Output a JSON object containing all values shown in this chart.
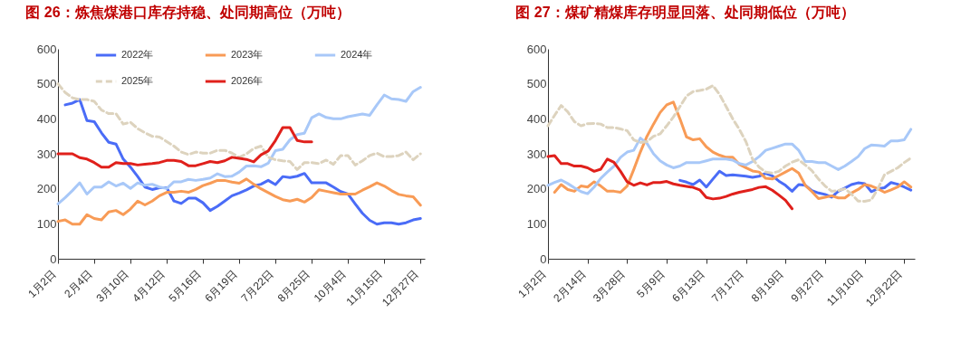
{
  "chart_data": [
    {
      "type": "line",
      "title": "图 26：炼焦煤港口库存持稳、处同期高位（万吨）",
      "categories": [
        "1月2日",
        null,
        null,
        null,
        null,
        "2月4日",
        null,
        null,
        null,
        null,
        "3月10日",
        null,
        null,
        null,
        null,
        "4月12日",
        null,
        null,
        null,
        null,
        "5月16日",
        null,
        null,
        null,
        null,
        "6月19日",
        null,
        null,
        null,
        null,
        "7月22日",
        null,
        null,
        null,
        null,
        "8月25日",
        null,
        null,
        null,
        null,
        "10月4日",
        null,
        null,
        null,
        null,
        "11月15日",
        null,
        null,
        null,
        null,
        "12月27日"
      ],
      "ylim": [
        0,
        600
      ],
      "yticks": [
        0,
        100,
        200,
        300,
        400,
        500,
        600
      ],
      "legend": "top",
      "grid": false,
      "series": [
        {
          "name": "2022年",
          "color": "#4a6cf7",
          "line_style": "solid",
          "values": [
            null,
            440,
            445,
            455,
            395,
            392,
            360,
            333,
            328,
            285,
            262,
            235,
            205,
            198,
            203,
            203,
            165,
            158,
            173,
            173,
            160,
            138,
            150,
            165,
            180,
            188,
            197,
            208,
            213,
            224,
            212,
            235,
            232,
            236,
            244,
            217,
            217,
            217,
            205,
            192,
            185,
            157,
            130,
            110,
            99,
            103,
            103,
            99,
            103,
            111,
            115
          ]
        },
        {
          "name": "2023年",
          "color": "#f89b56",
          "line_style": "solid",
          "values": [
            107,
            111,
            99,
            99,
            126,
            115,
            111,
            134,
            138,
            126,
            142,
            165,
            154,
            165,
            180,
            190,
            190,
            193,
            190,
            198,
            209,
            216,
            224,
            224,
            219,
            216,
            228,
            213,
            200,
            189,
            178,
            169,
            165,
            170,
            162,
            175,
            197,
            193,
            189,
            185,
            185,
            185,
            196,
            206,
            217,
            208,
            195,
            184,
            180,
            177,
            153
          ]
        },
        {
          "name": "2024年",
          "color": "#a8c8f8",
          "line_style": "solid",
          "values": [
            157,
            175,
            195,
            217,
            185,
            205,
            205,
            220,
            208,
            216,
            201,
            217,
            210,
            213,
            205,
            201,
            220,
            220,
            227,
            224,
            227,
            231,
            243,
            235,
            236,
            248,
            265,
            266,
            263,
            273,
            309,
            313,
            340,
            355,
            359,
            403,
            414,
            404,
            400,
            400,
            406,
            410,
            414,
            410,
            440,
            468,
            457,
            455,
            450,
            478,
            490
          ]
        },
        {
          "name": "2025年",
          "color": "#ddd3be",
          "line_style": "dashed",
          "values": [
            500,
            475,
            460,
            455,
            455,
            450,
            425,
            415,
            415,
            385,
            390,
            372,
            360,
            350,
            348,
            335,
            322,
            305,
            298,
            305,
            302,
            302,
            310,
            310,
            302,
            290,
            300,
            315,
            322,
            290,
            283,
            280,
            278,
            255,
            275,
            275,
            272,
            282,
            270,
            295,
            295,
            268,
            280,
            295,
            302,
            292,
            292,
            295,
            305,
            283,
            300
          ]
        },
        {
          "name": "2026年",
          "color": "#e0201b",
          "line_style": "solid",
          "values": [
            300,
            300,
            300,
            289,
            285,
            275,
            262,
            262,
            275,
            272,
            272,
            268,
            270,
            272,
            275,
            281,
            281,
            278,
            266,
            266,
            272,
            278,
            275,
            280,
            290,
            287,
            284,
            277,
            297,
            308,
            338,
            375,
            375,
            338,
            334,
            334,
            null,
            null,
            null,
            null,
            null,
            null,
            null,
            null,
            null,
            null,
            null,
            null,
            null,
            null,
            null
          ]
        }
      ]
    },
    {
      "type": "line",
      "title": "图 27：煤矿精煤库存明显回落、处同期低位（万吨）",
      "categories": [
        "1月2日",
        null,
        null,
        null,
        null,
        null,
        "2月14日",
        null,
        null,
        null,
        null,
        null,
        "3月28日",
        null,
        null,
        null,
        null,
        null,
        "5月9日",
        null,
        null,
        null,
        null,
        null,
        "6月13日",
        null,
        null,
        null,
        null,
        null,
        "7月17日",
        null,
        null,
        null,
        null,
        null,
        "8月19日",
        null,
        null,
        null,
        null,
        null,
        "9月27日",
        null,
        null,
        null,
        null,
        null,
        "11月10日",
        null,
        null,
        null,
        null,
        null,
        "12月22日",
        null
      ],
      "ylim": [
        0,
        600
      ],
      "yticks": [
        0,
        100,
        200,
        300,
        400,
        500,
        600
      ],
      "legend": "top",
      "grid": false,
      "series": [
        {
          "name": "2022年",
          "color": "#4a6cf7",
          "line_style": "solid",
          "values": [
            null,
            null,
            null,
            null,
            null,
            null,
            null,
            null,
            null,
            null,
            null,
            null,
            null,
            null,
            null,
            null,
            null,
            null,
            null,
            null,
            224,
            219,
            212,
            225,
            205,
            228,
            250,
            238,
            240,
            238,
            236,
            233,
            236,
            244,
            237,
            222,
            210,
            193,
            212,
            210,
            195,
            188,
            184,
            176,
            193,
            202,
            212,
            217,
            215,
            192,
            200,
            203,
            218,
            213,
            205,
            196
          ]
        },
        {
          "name": "2023年",
          "color": "#f89b56",
          "line_style": "solid",
          "values": [
            null,
            190,
            212,
            198,
            193,
            208,
            205,
            220,
            208,
            193,
            193,
            190,
            208,
            255,
            305,
            350,
            385,
            418,
            440,
            448,
            400,
            348,
            340,
            343,
            320,
            305,
            296,
            290,
            290,
            270,
            260,
            251,
            248,
            230,
            228,
            238,
            248,
            258,
            245,
            210,
            192,
            172,
            176,
            180,
            174,
            174,
            188,
            198,
            212,
            208,
            200,
            190,
            197,
            205,
            220,
            205
          ]
        },
        {
          "name": "2024年",
          "color": "#a8c8f8",
          "line_style": "solid",
          "values": [
            210,
            218,
            225,
            215,
            203,
            192,
            186,
            205,
            230,
            248,
            265,
            290,
            305,
            310,
            345,
            330,
            300,
            280,
            268,
            260,
            265,
            275,
            275,
            275,
            280,
            285,
            285,
            285,
            282,
            272,
            268,
            278,
            292,
            310,
            316,
            322,
            328,
            328,
            310,
            278,
            278,
            275,
            275,
            265,
            255,
            265,
            278,
            292,
            315,
            325,
            324,
            322,
            337,
            337,
            340,
            370
          ]
        },
        {
          "name": "2025年",
          "color": "#ddd3be",
          "line_style": "dashed",
          "values": [
            380,
            410,
            438,
            420,
            392,
            380,
            386,
            387,
            385,
            375,
            375,
            371,
            366,
            340,
            332,
            335,
            350,
            357,
            380,
            405,
            435,
            465,
            478,
            481,
            485,
            495,
            470,
            435,
            400,
            370,
            335,
            285,
            262,
            248,
            245,
            250,
            265,
            276,
            283,
            268,
            252,
            228,
            208,
            193,
            195,
            200,
            185,
            165,
            164,
            168,
            200,
            240,
            250,
            260,
            275,
            288
          ]
        },
        {
          "name": "2026年",
          "color": "#e0201b",
          "line_style": "solid",
          "values": [
            292,
            295,
            272,
            272,
            265,
            265,
            260,
            250,
            256,
            285,
            276,
            250,
            220,
            210,
            217,
            211,
            218,
            218,
            221,
            214,
            210,
            207,
            204,
            197,
            175,
            171,
            173,
            178,
            185,
            190,
            194,
            198,
            204,
            206,
            196,
            182,
            167,
            143,
            null,
            null,
            null,
            null,
            null,
            null,
            null,
            null,
            null,
            null,
            null,
            null,
            null,
            null,
            null,
            null,
            null,
            null
          ]
        }
      ]
    }
  ]
}
